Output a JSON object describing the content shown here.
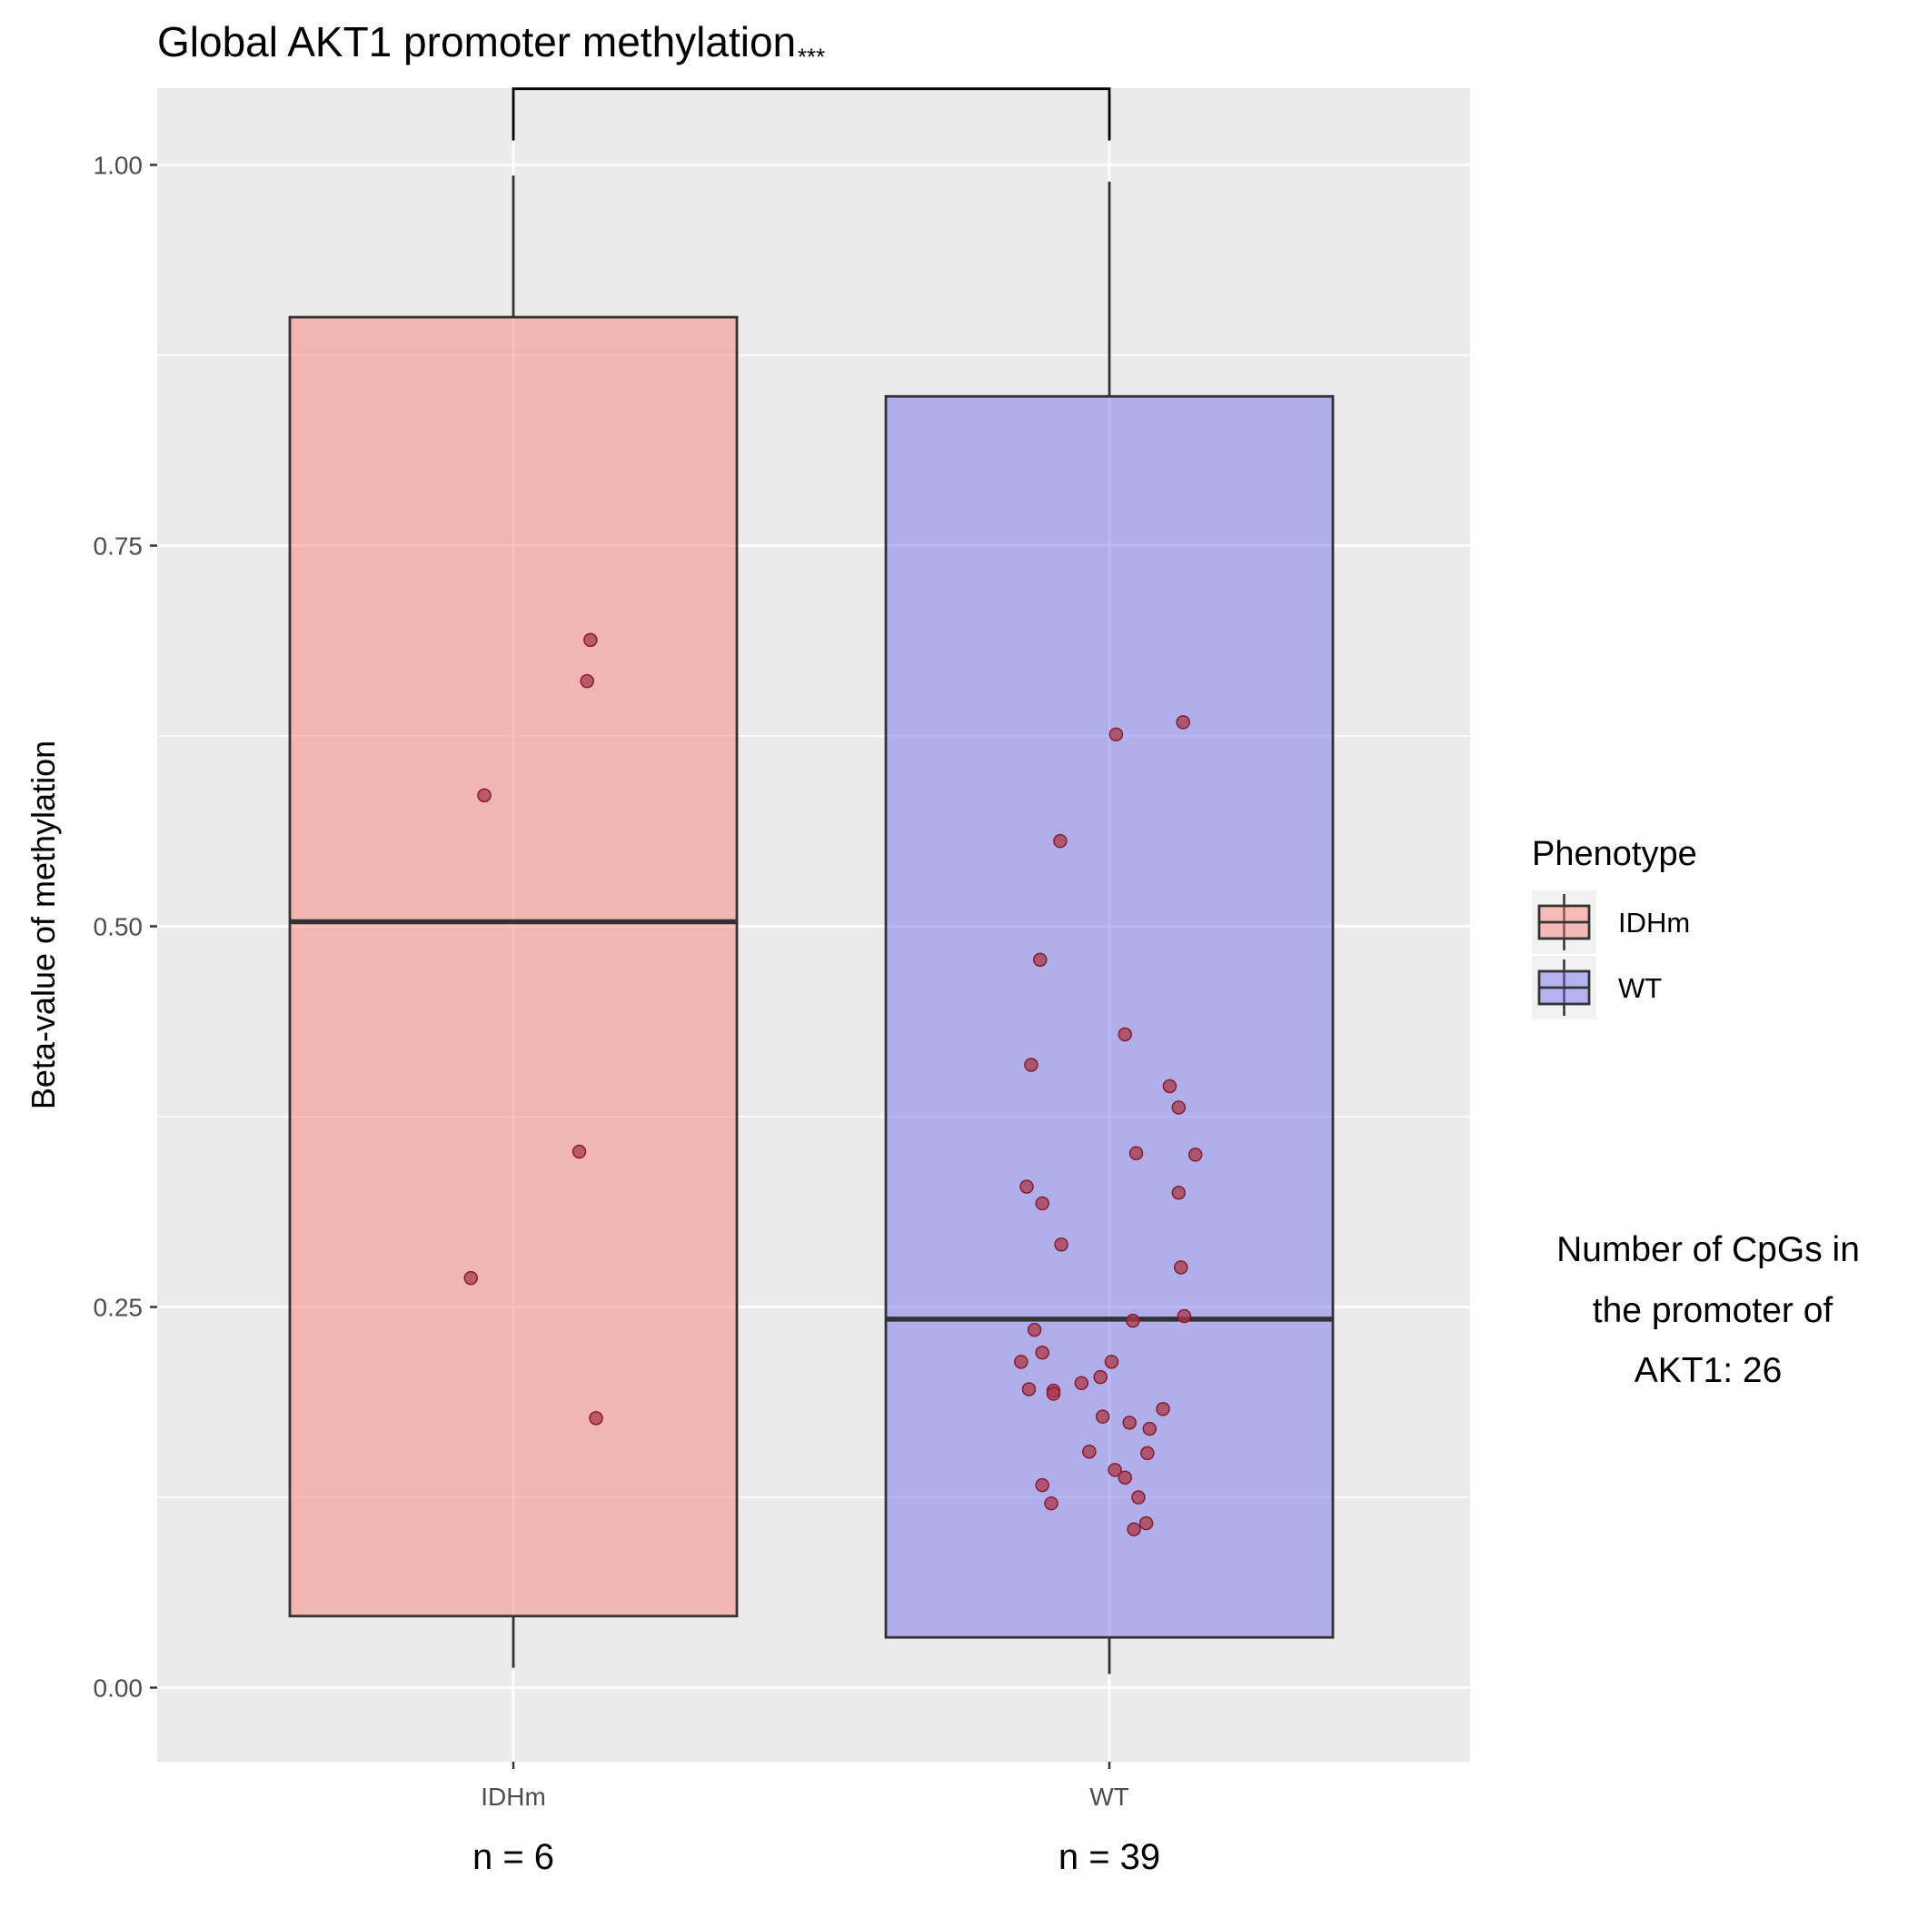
{
  "chart_data": {
    "type": "boxplot",
    "title": "Global AKT1 promoter methylation",
    "xlabel": "",
    "ylabel": "Beta-value of methylation",
    "ylim": [
      -0.05,
      1.05
    ],
    "yticks": [
      0,
      0.25,
      0.5,
      0.75,
      1
    ],
    "ytick_labels": [
      "0.00",
      "0.25",
      "0.50",
      "0.75",
      "1.00"
    ],
    "grid": true,
    "categories": [
      "IDHm",
      "WT"
    ],
    "n_labels": [
      "n = 6",
      "n = 39"
    ],
    "boxes": [
      {
        "name": "IDHm",
        "color": "#f8766d",
        "whisker_low": 0.013,
        "q1": 0.047,
        "median": 0.503,
        "q3": 0.9,
        "whisker_high": 0.993
      },
      {
        "name": "WT",
        "color": "#6666ee",
        "whisker_low": 0.009,
        "q1": 0.033,
        "median": 0.242,
        "q3": 0.848,
        "whisker_high": 0.989
      }
    ],
    "points": [
      {
        "group": "IDHm",
        "x": 0.69,
        "y": 0.688
      },
      {
        "group": "IDHm",
        "x": 0.66,
        "y": 0.661
      },
      {
        "group": "IDHm",
        "x": -0.26,
        "y": 0.586
      },
      {
        "group": "IDHm",
        "x": 0.59,
        "y": 0.352
      },
      {
        "group": "IDHm",
        "x": -0.38,
        "y": 0.269
      },
      {
        "group": "IDHm",
        "x": 0.74,
        "y": 0.177
      },
      {
        "group": "WT",
        "x": 0.66,
        "y": 0.634
      },
      {
        "group": "WT",
        "x": 0.06,
        "y": 0.626
      },
      {
        "group": "WT",
        "x": -0.44,
        "y": 0.556
      },
      {
        "group": "WT",
        "x": -0.62,
        "y": 0.478
      },
      {
        "group": "WT",
        "x": 0.14,
        "y": 0.429
      },
      {
        "group": "WT",
        "x": -0.7,
        "y": 0.409
      },
      {
        "group": "WT",
        "x": 0.54,
        "y": 0.395
      },
      {
        "group": "WT",
        "x": 0.62,
        "y": 0.381
      },
      {
        "group": "WT",
        "x": 0.24,
        "y": 0.351
      },
      {
        "group": "WT",
        "x": 0.77,
        "y": 0.35
      },
      {
        "group": "WT",
        "x": -0.74,
        "y": 0.329
      },
      {
        "group": "WT",
        "x": 0.62,
        "y": 0.325
      },
      {
        "group": "WT",
        "x": -0.6,
        "y": 0.318
      },
      {
        "group": "WT",
        "x": -0.43,
        "y": 0.291
      },
      {
        "group": "WT",
        "x": 0.64,
        "y": 0.276
      },
      {
        "group": "WT",
        "x": 0.67,
        "y": 0.244
      },
      {
        "group": "WT",
        "x": 0.21,
        "y": 0.241
      },
      {
        "group": "WT",
        "x": -0.67,
        "y": 0.235
      },
      {
        "group": "WT",
        "x": -0.6,
        "y": 0.22
      },
      {
        "group": "WT",
        "x": -0.79,
        "y": 0.214
      },
      {
        "group": "WT",
        "x": 0.02,
        "y": 0.214
      },
      {
        "group": "WT",
        "x": -0.08,
        "y": 0.204
      },
      {
        "group": "WT",
        "x": -0.25,
        "y": 0.2
      },
      {
        "group": "WT",
        "x": -0.72,
        "y": 0.196
      },
      {
        "group": "WT",
        "x": -0.5,
        "y": 0.195
      },
      {
        "group": "WT",
        "x": -0.5,
        "y": 0.193
      },
      {
        "group": "WT",
        "x": 0.48,
        "y": 0.183
      },
      {
        "group": "WT",
        "x": -0.06,
        "y": 0.178
      },
      {
        "group": "WT",
        "x": 0.18,
        "y": 0.174
      },
      {
        "group": "WT",
        "x": 0.36,
        "y": 0.17
      },
      {
        "group": "WT",
        "x": -0.18,
        "y": 0.155
      },
      {
        "group": "WT",
        "x": 0.34,
        "y": 0.154
      },
      {
        "group": "WT",
        "x": 0.05,
        "y": 0.143
      },
      {
        "group": "WT",
        "x": 0.14,
        "y": 0.138
      },
      {
        "group": "WT",
        "x": -0.6,
        "y": 0.133
      },
      {
        "group": "WT",
        "x": 0.26,
        "y": 0.125
      },
      {
        "group": "WT",
        "x": -0.52,
        "y": 0.121
      },
      {
        "group": "WT",
        "x": 0.33,
        "y": 0.108
      },
      {
        "group": "WT",
        "x": 0.22,
        "y": 0.104
      }
    ],
    "point_color": "#a93a4c",
    "significance": {
      "label": "***",
      "y": 1.05
    },
    "legend": {
      "title": "Phenotype",
      "placement": "right",
      "entries": [
        "IDHm",
        "WT"
      ]
    },
    "annotation": [
      "Number of CpGs in",
      "the promoter of",
      "AKT1: 26"
    ]
  }
}
